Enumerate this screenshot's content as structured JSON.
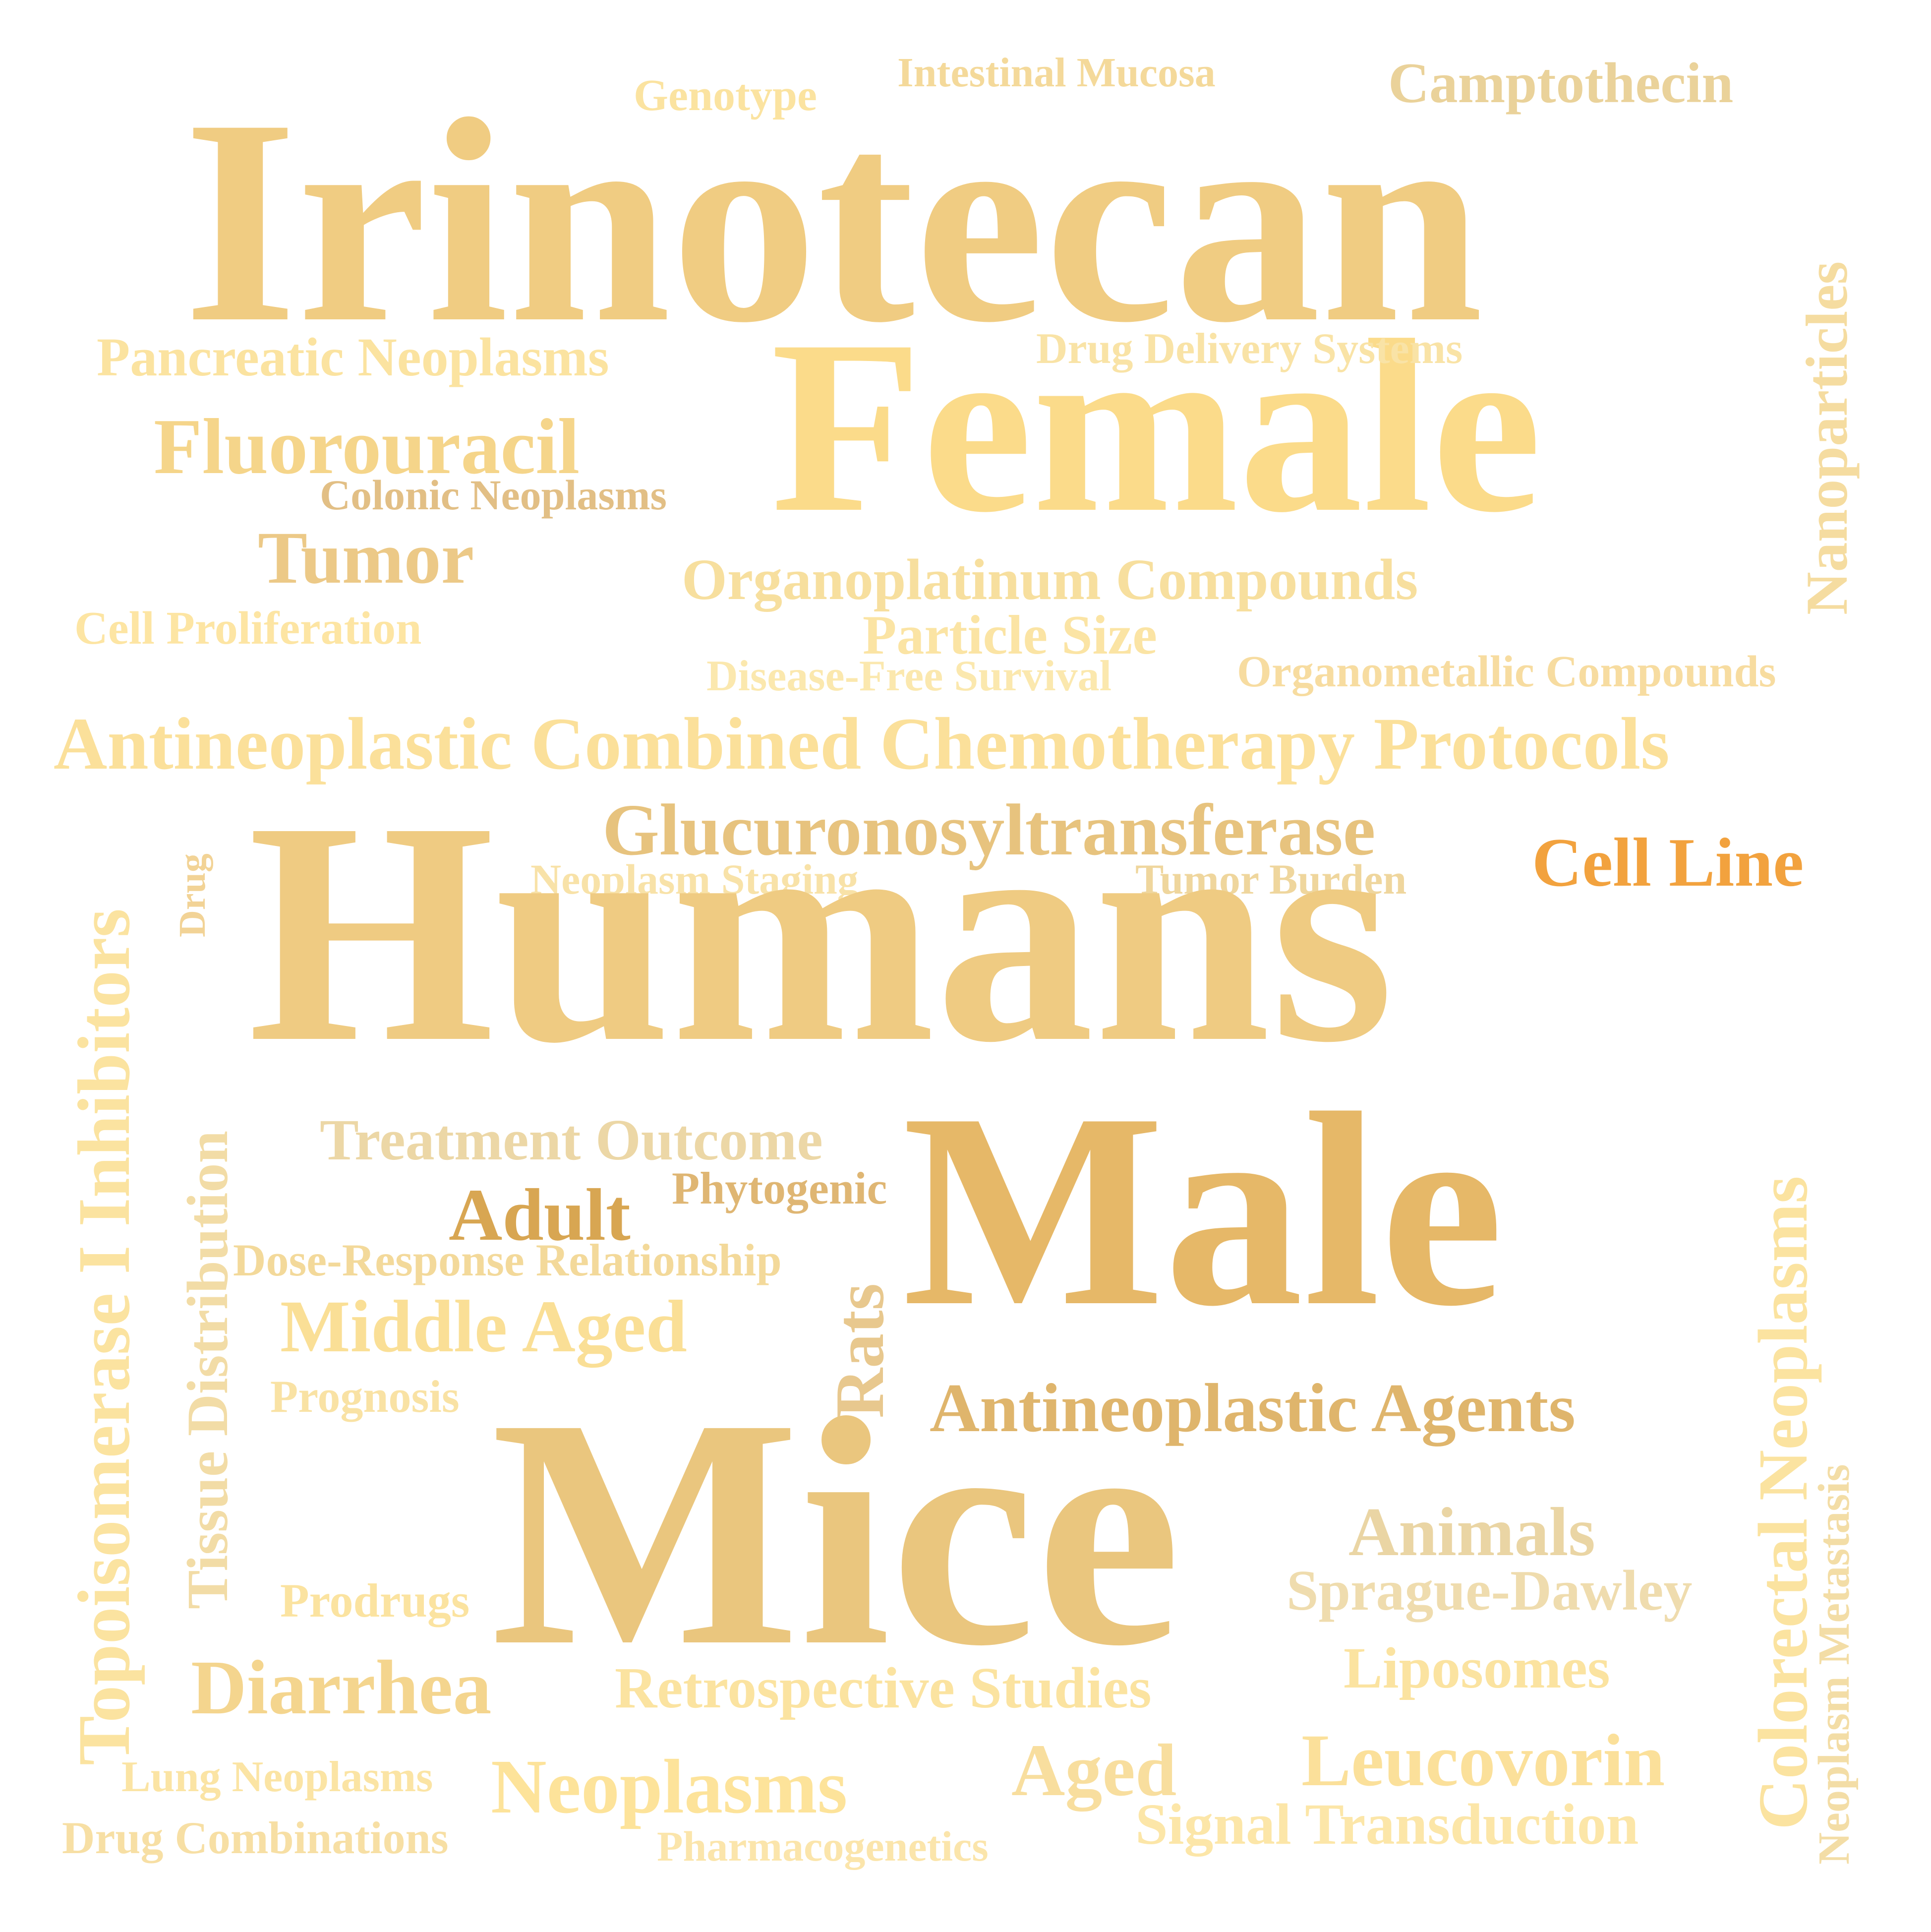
{
  "colors": {
    "background": "#ffffff",
    "palette": [
      "#f0cc82",
      "#fbdb8a",
      "#eac67e",
      "#e6b868",
      "#dfb56c",
      "#f2a23e",
      "#f7e1a0",
      "#fde39a"
    ]
  },
  "words": [
    {
      "text": "Irinotecan",
      "color": "#f0cc82"
    },
    {
      "text": "Humans",
      "color": "#efcb82"
    },
    {
      "text": "Female",
      "color": "#fbdb8a"
    },
    {
      "text": "Male",
      "color": "#e6b868"
    },
    {
      "text": "Mice",
      "color": "#eac67e"
    },
    {
      "text": "Antineoplastic Combined Chemotherapy Protocols",
      "color": "#fbe09a"
    },
    {
      "text": "Glucuronosyltransferase",
      "color": "#e7c37e"
    },
    {
      "text": "Antineoplastic Agents",
      "color": "#dfb56c"
    },
    {
      "text": "Organoplatinum Compounds",
      "color": "#f7df9e"
    },
    {
      "text": "Pancreatic Neoplasms",
      "color": "#fbe3a0"
    },
    {
      "text": "Fluorouracil",
      "color": "#f5d58a"
    },
    {
      "text": "Tumor",
      "color": "#ecc987"
    },
    {
      "text": "Colonic Neoplasms",
      "color": "#e2bf85"
    },
    {
      "text": "Cell Proliferation",
      "color": "#fde5a3"
    },
    {
      "text": "Camptothecin",
      "color": "#ead29a"
    },
    {
      "text": "Genotype",
      "color": "#fbe3a0"
    },
    {
      "text": "Intestinal Mucosa",
      "color": "#f4d99a"
    },
    {
      "text": "Drug Delivery Systems",
      "color": "#f9e3a6"
    },
    {
      "text": "Nanoparticles",
      "color": "#f5dca0"
    },
    {
      "text": "Particle Size",
      "color": "#fbe4a4"
    },
    {
      "text": "Disease-Free Survival",
      "color": "#fbe8ae"
    },
    {
      "text": "Organometallic Compounds",
      "color": "#f7dca0"
    },
    {
      "text": "Cell Line",
      "color": "#f2a23e"
    },
    {
      "text": "Neoplasm Staging",
      "color": "#f8e2a8"
    },
    {
      "text": "Tumor Burden",
      "color": "#efd69d"
    },
    {
      "text": "Topoisomerase I Inhibitors",
      "color": "#fbe3a0"
    },
    {
      "text": "Drug",
      "color": "#f2d396"
    },
    {
      "text": "Tissue Distribution",
      "color": "#f2dca6"
    },
    {
      "text": "Treatment Outcome",
      "color": "#ecd7a6"
    },
    {
      "text": "Adult",
      "color": "#d8a652"
    },
    {
      "text": "Phytogenic",
      "color": "#dfb673"
    },
    {
      "text": "Dose-Response Relationship",
      "color": "#f3d99a"
    },
    {
      "text": "Middle Aged",
      "color": "#fadf96"
    },
    {
      "text": "Rats",
      "color": "#e8c88e"
    },
    {
      "text": "Prognosis",
      "color": "#f9e2a4"
    },
    {
      "text": "Colorectal Neoplasms",
      "color": "#fbe3a0"
    },
    {
      "text": "Neoplasm Metastasis",
      "color": "#f3dda6"
    },
    {
      "text": "Animals",
      "color": "#ead5a4"
    },
    {
      "text": "Sprague-Dawley",
      "color": "#efdcae"
    },
    {
      "text": "Prodrugs",
      "color": "#fbe3a0"
    },
    {
      "text": "Diarrhea",
      "color": "#f4d58e"
    },
    {
      "text": "Retrospective Studies",
      "color": "#fbe3a0"
    },
    {
      "text": "Liposomes",
      "color": "#fbe3a0"
    },
    {
      "text": "Leucovorin",
      "color": "#fbe09a"
    },
    {
      "text": "Aged",
      "color": "#f8de9e"
    },
    {
      "text": "Neoplasms",
      "color": "#fde39a"
    },
    {
      "text": "Lung Neoplasms",
      "color": "#fbe4a4"
    },
    {
      "text": "Drug Combinations",
      "color": "#f7dfa4"
    },
    {
      "text": "Pharmacogenetics",
      "color": "#fbe5ab"
    },
    {
      "text": "Signal Transduction",
      "color": "#fce6a8"
    }
  ]
}
